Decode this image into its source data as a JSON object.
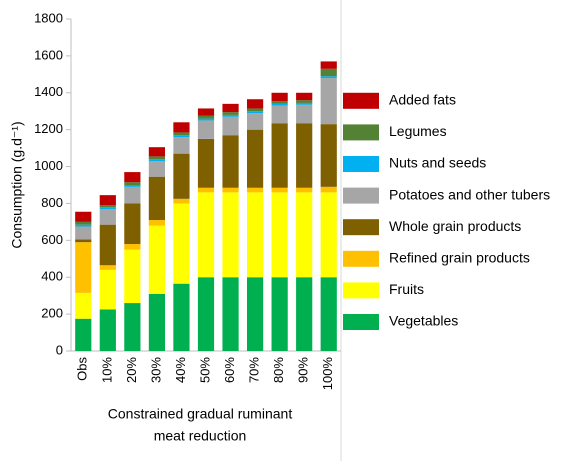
{
  "chart_data": {
    "type": "stacked_bar",
    "y_label": "Consumption (g.d⁻¹)",
    "x_label": [
      "Constrained gradual ruminant",
      "meat reduction"
    ],
    "categories": [
      "Obs",
      "10%",
      "20%",
      "30%",
      "40%",
      "50%",
      "60%",
      "70%",
      "80%",
      "90%",
      "100%"
    ],
    "series": [
      {
        "name": "Vegetables",
        "color": "#00b050",
        "values": [
          175,
          225,
          260,
          310,
          365,
          400,
          400,
          400,
          400,
          400,
          400
        ]
      },
      {
        "name": "Fruits",
        "color": "#ffff00",
        "values": [
          140,
          215,
          290,
          370,
          435,
          460,
          460,
          460,
          460,
          460,
          460
        ]
      },
      {
        "name": "Refined grain products",
        "color": "#ffc000",
        "values": [
          275,
          25,
          30,
          30,
          25,
          25,
          25,
          25,
          25,
          25,
          30
        ]
      },
      {
        "name": "Whole grain products",
        "color": "#7f6000",
        "values": [
          15,
          220,
          220,
          235,
          245,
          265,
          285,
          315,
          350,
          350,
          340
        ]
      },
      {
        "name": "Potatoes and other tubers",
        "color": "#a6a6a6",
        "values": [
          70,
          85,
          90,
          85,
          90,
          100,
          100,
          90,
          95,
          100,
          250
        ]
      },
      {
        "name": "Nuts and seeds",
        "color": "#00b0f0",
        "values": [
          10,
          10,
          10,
          10,
          10,
          10,
          10,
          10,
          10,
          10,
          10
        ]
      },
      {
        "name": "Legumes",
        "color": "#548235",
        "values": [
          15,
          10,
          15,
          15,
          15,
          15,
          15,
          15,
          15,
          15,
          40
        ]
      },
      {
        "name": "Added fats",
        "color": "#c00000",
        "values": [
          55,
          55,
          55,
          50,
          55,
          40,
          45,
          50,
          45,
          40,
          40
        ]
      }
    ],
    "ylim": [
      0,
      1800
    ],
    "yticks": [
      0,
      200,
      400,
      600,
      800,
      1000,
      1200,
      1400,
      1600,
      1800
    ]
  }
}
